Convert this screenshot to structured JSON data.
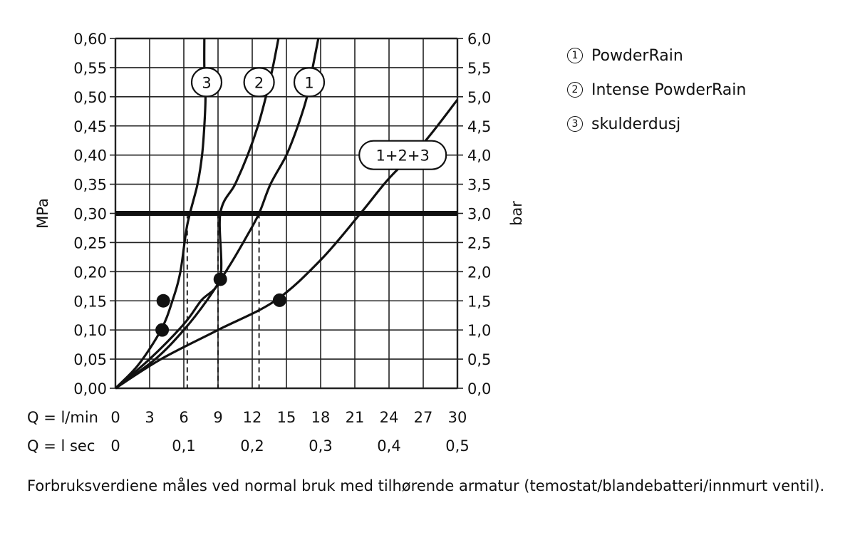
{
  "chart_data": {
    "type": "line",
    "xlabel_row1": "Q = l/min",
    "xlabel_row2": "Q = l  sec",
    "x_ticks_lmin": [
      "0",
      "3",
      "6",
      "9",
      "12",
      "15",
      "18",
      "21",
      "24",
      "27",
      "30"
    ],
    "x_ticks_lsec": [
      {
        "x": 0,
        "label": "0"
      },
      {
        "x": 6,
        "label": "0,1"
      },
      {
        "x": 12,
        "label": "0,2"
      },
      {
        "x": 18,
        "label": "0,3"
      },
      {
        "x": 24,
        "label": "0,4"
      },
      {
        "x": 30,
        "label": "0,5"
      }
    ],
    "ylabel_left": "MPa",
    "ylabel_right": "bar",
    "y_ticks_left": [
      "0,00",
      "0,05",
      "0,10",
      "0,15",
      "0,20",
      "0,25",
      "0,30",
      "0,35",
      "0,40",
      "0,45",
      "0,50",
      "0,55",
      "0,60"
    ],
    "y_ticks_right": [
      "0,0",
      "0,5",
      "1,0",
      "1,5",
      "2,0",
      "2,5",
      "3,0",
      "3,5",
      "4,0",
      "4,5",
      "5,0",
      "5,5",
      "6,0"
    ],
    "xlim": [
      0,
      30
    ],
    "ylim": [
      0,
      0.6
    ],
    "grid": true,
    "reference_line": {
      "y": 0.3
    },
    "series": [
      {
        "name": "1",
        "label": "1",
        "points": [
          [
            0,
            0
          ],
          [
            3.5,
            0.05
          ],
          [
            6,
            0.1
          ],
          [
            8,
            0.15
          ],
          [
            10,
            0.21
          ],
          [
            11.5,
            0.26
          ],
          [
            12.6,
            0.3
          ],
          [
            13.6,
            0.35
          ],
          [
            15,
            0.4
          ],
          [
            16,
            0.45
          ],
          [
            16.8,
            0.5
          ],
          [
            17.3,
            0.55
          ],
          [
            17.8,
            0.6
          ]
        ],
        "label_at": [
          17,
          0.525
        ]
      },
      {
        "name": "2",
        "label": "2",
        "points": [
          [
            0,
            0
          ],
          [
            3,
            0.05
          ],
          [
            6,
            0.11
          ],
          [
            7.5,
            0.15
          ],
          [
            9.2,
            0.19
          ],
          [
            9.2,
            0.3
          ],
          [
            10.5,
            0.35
          ],
          [
            11.6,
            0.4
          ],
          [
            12.5,
            0.45
          ],
          [
            13.2,
            0.5
          ],
          [
            13.8,
            0.55
          ],
          [
            14.3,
            0.6
          ]
        ],
        "label_at": [
          12.6,
          0.525
        ]
      },
      {
        "name": "3",
        "label": "3",
        "points": [
          [
            0,
            0
          ],
          [
            2,
            0.04
          ],
          [
            4,
            0.1
          ],
          [
            5,
            0.15
          ],
          [
            5.7,
            0.2
          ],
          [
            6.3,
            0.28
          ],
          [
            7.2,
            0.35
          ],
          [
            7.6,
            0.4
          ],
          [
            7.8,
            0.45
          ],
          [
            7.9,
            0.5
          ],
          [
            7.8,
            0.55
          ],
          [
            7.8,
            0.6
          ]
        ],
        "label_at": [
          8,
          0.525
        ]
      },
      {
        "name": "1+2+3",
        "label": "1+2+3",
        "points": [
          [
            0,
            0
          ],
          [
            4,
            0.05
          ],
          [
            9,
            0.1
          ],
          [
            14,
            0.15
          ],
          [
            18,
            0.22
          ],
          [
            21.5,
            0.3
          ],
          [
            24,
            0.36
          ],
          [
            27,
            0.42
          ],
          [
            30,
            0.495
          ]
        ],
        "label_at": [
          25.2,
          0.4
        ]
      }
    ],
    "markers": [
      [
        4.2,
        0.15
      ],
      [
        4.1,
        0.1
      ],
      [
        9.2,
        0.187
      ],
      [
        14.4,
        0.151
      ]
    ],
    "drop_lines": [
      [
        6.3,
        0.3
      ],
      [
        9.0,
        0.3
      ],
      [
        12.6,
        0.3
      ]
    ]
  },
  "legend": [
    {
      "num": "1",
      "text": "PowderRain"
    },
    {
      "num": "2",
      "text": "Intense PowderRain"
    },
    {
      "num": "3",
      "text": "skulderdusj"
    }
  ],
  "note": "Forbruksverdiene måles ved normal bruk med tilhørende armatur (temostat/blandebatteri/innmurt ventil)."
}
